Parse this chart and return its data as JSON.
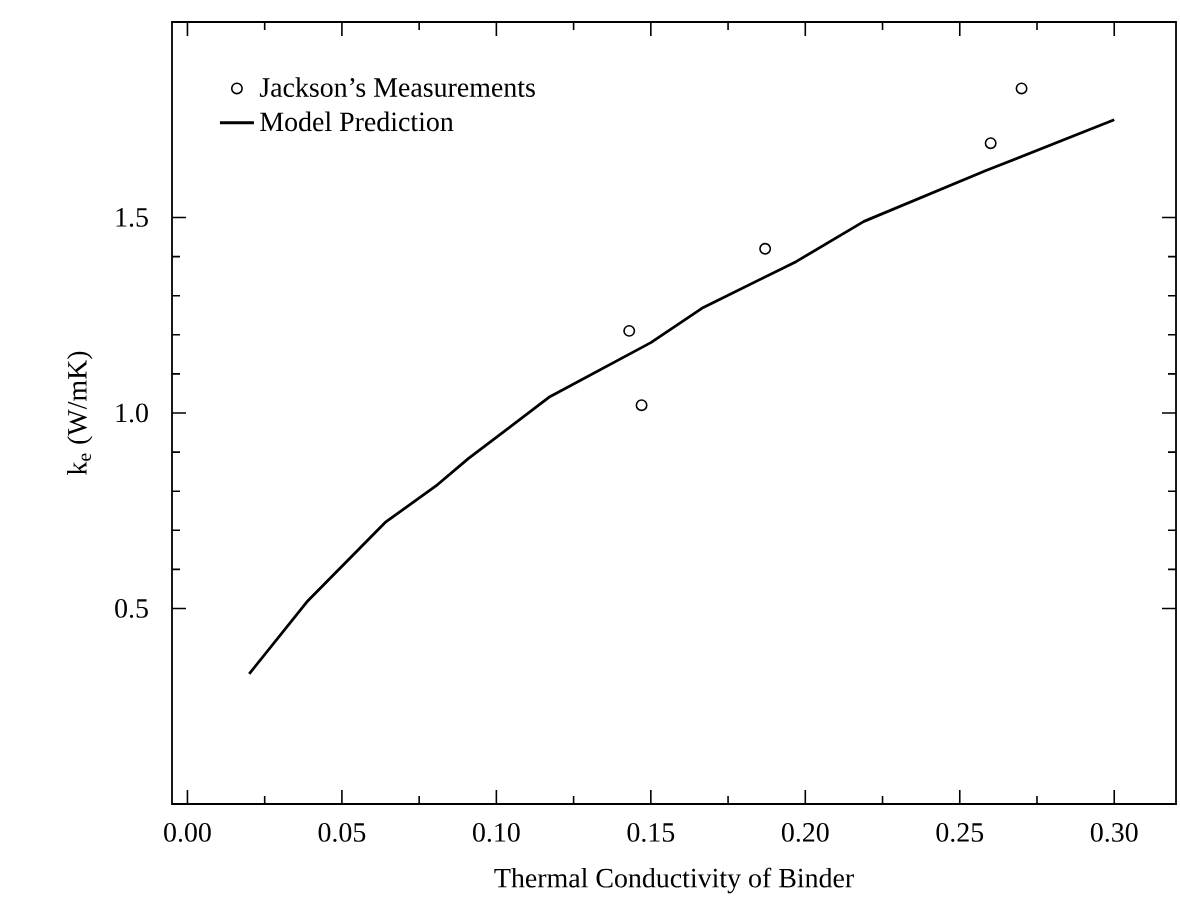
{
  "chart_data": {
    "type": "line",
    "xlabel": "Thermal Conductivity of Binder",
    "ylabel": "k$_{e}$ (W/mK)",
    "xlim": [
      -0.005,
      0.32
    ],
    "ylim": [
      0,
      2.0
    ],
    "xticks": [
      {
        "value": 0,
        "label": "0.00"
      },
      {
        "value": 0.05,
        "label": "0.05"
      },
      {
        "value": 0.1,
        "label": "0.10"
      },
      {
        "value": 0.15,
        "label": "0.15"
      },
      {
        "value": 0.2,
        "label": "0.20"
      },
      {
        "value": 0.25,
        "label": "0.25"
      },
      {
        "value": 0.3,
        "label": "0.30"
      }
    ],
    "yticks": [
      {
        "value": 0.5,
        "label": "0.5"
      },
      {
        "value": 1.0,
        "label": "1.0"
      },
      {
        "value": 1.5,
        "label": "1.5"
      }
    ],
    "grid": false,
    "legend": "top left",
    "series": [
      {
        "name": "Jackson’s Measurements",
        "type": "scatter",
        "marker": "circle",
        "color": "#000000",
        "x": [
          0.143,
          0.147,
          0.187,
          0.26,
          0.27
        ],
        "values": [
          1.21,
          1.02,
          1.42,
          1.69,
          1.83
        ]
      },
      {
        "name": "Model Prediction",
        "marker": "none",
        "line_style": "solid",
        "color": "#000000",
        "x": [
          0.02,
          0.039,
          0.064,
          0.081,
          0.091,
          0.117,
          0.15,
          0.167,
          0.197,
          0.219,
          0.2585,
          0.3
        ],
        "values": [
          0.333,
          0.52,
          0.72,
          0.817,
          0.884,
          1.04,
          1.18,
          1.27,
          1.387,
          1.49,
          1.62,
          1.75
        ]
      }
    ]
  }
}
